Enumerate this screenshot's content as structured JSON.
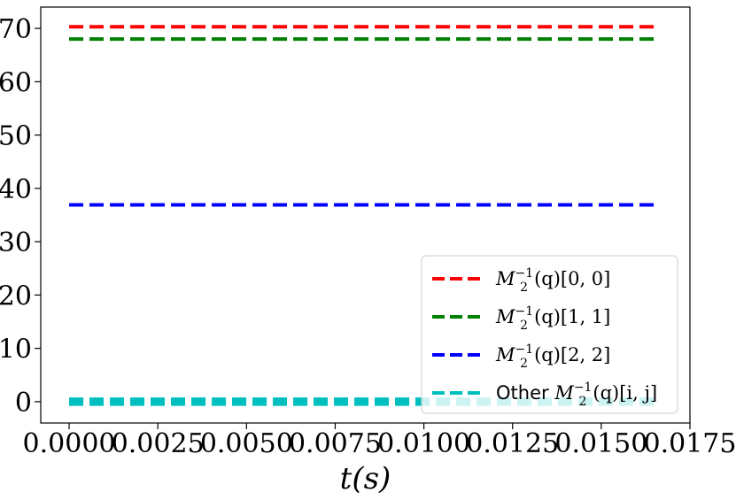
{
  "chart_data": {
    "type": "line",
    "title": "",
    "xlabel": "t(s)",
    "ylabel": "",
    "xlim": [
      -0.0008,
      0.0175
    ],
    "ylim": [
      -4,
      74
    ],
    "xticks": [
      0.0,
      0.0025,
      0.005,
      0.0075,
      0.01,
      0.0125,
      0.015,
      0.0175
    ],
    "xtick_labels": [
      "0.0000",
      "0.0025",
      "0.0050",
      "0.0075",
      "0.0100",
      "0.0125",
      "0.0150",
      "0.0175"
    ],
    "yticks": [
      0,
      10,
      20,
      30,
      40,
      50,
      60,
      70
    ],
    "ytick_labels": [
      "0",
      "10",
      "20",
      "30",
      "40",
      "50",
      "60",
      "70"
    ],
    "grid": false,
    "legend_position": "bottom-right",
    "series": [
      {
        "name": "M_2^{-1}(q)[0,0]",
        "color": "#ff0000",
        "dash": "dashed",
        "x": [
          0.0,
          0.0165
        ],
        "y": [
          70.3,
          70.3
        ]
      },
      {
        "name": "M_2^{-1}(q)[1,1]",
        "color": "#008000",
        "dash": "dashed",
        "x": [
          0.0,
          0.0165
        ],
        "y": [
          68.0,
          68.0
        ]
      },
      {
        "name": "M_2^{-1}(q)[2,2]",
        "color": "#0000ff",
        "dash": "dashed",
        "x": [
          0.0,
          0.0165
        ],
        "y": [
          36.9,
          36.9
        ]
      },
      {
        "name": "Other M_2^{-1}(q)[i,j]",
        "color": "#00bfbf",
        "dash": "dashed",
        "x": [
          0.0,
          0.0165
        ],
        "y": [
          0.0,
          0.0
        ],
        "multiple_lines": true
      }
    ]
  }
}
